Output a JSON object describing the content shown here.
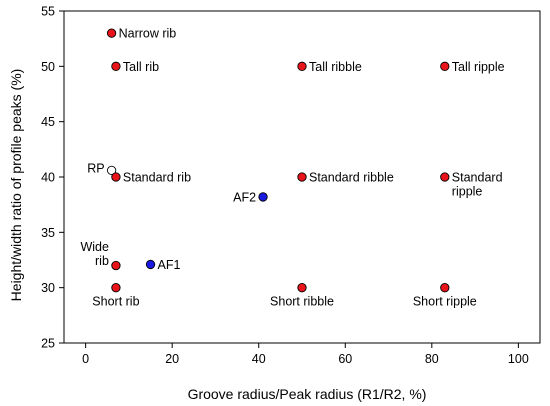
{
  "chart_data": {
    "type": "scatter",
    "title": "",
    "xlabel": "Groove radius/Peak radius (R1/R2, %)",
    "ylabel": "Height/width ratio of profile peaks (%)",
    "xlim": [
      -5,
      105
    ],
    "ylim": [
      25,
      55
    ],
    "xticks": [
      0,
      20,
      40,
      60,
      80,
      100
    ],
    "yticks": [
      25,
      30,
      35,
      40,
      45,
      50,
      55
    ],
    "grid": false,
    "legend": "none",
    "colors": {
      "red": "#e8141a",
      "blue": "#1a1ae0",
      "open": "#ffffff",
      "stroke": "#000000"
    },
    "points": [
      {
        "x": 6,
        "y": 53,
        "label": [
          "Narrow rib"
        ],
        "style": "red",
        "anchor": "right"
      },
      {
        "x": 7,
        "y": 50,
        "label": [
          "Tall rib"
        ],
        "style": "red",
        "anchor": "right"
      },
      {
        "x": 50,
        "y": 50,
        "label": [
          "Tall ribble"
        ],
        "style": "red",
        "anchor": "right"
      },
      {
        "x": 83,
        "y": 50,
        "label": [
          "Tall ripple"
        ],
        "style": "red",
        "anchor": "right"
      },
      {
        "x": 6,
        "y": 40.6,
        "label": [
          "RP"
        ],
        "style": "open",
        "anchor": "left"
      },
      {
        "x": 7,
        "y": 40,
        "label": [
          "Standard rib"
        ],
        "style": "red",
        "anchor": "right"
      },
      {
        "x": 50,
        "y": 40,
        "label": [
          "Standard ribble"
        ],
        "style": "red",
        "anchor": "right"
      },
      {
        "x": 83,
        "y": 40,
        "label": [
          "Standard",
          "ripple"
        ],
        "style": "red",
        "anchor": "right"
      },
      {
        "x": 41,
        "y": 38.2,
        "label": [
          "AF2"
        ],
        "style": "blue",
        "anchor": "left"
      },
      {
        "x": 7,
        "y": 32,
        "label": [
          "Wide",
          "rib"
        ],
        "style": "red",
        "anchor": "left"
      },
      {
        "x": 15,
        "y": 32.1,
        "label": [
          "AF1"
        ],
        "style": "blue",
        "anchor": "right"
      },
      {
        "x": 7,
        "y": 30,
        "label": [
          "Short rib"
        ],
        "style": "red",
        "anchor": "below"
      },
      {
        "x": 50,
        "y": 30,
        "label": [
          "Short ribble"
        ],
        "style": "red",
        "anchor": "below"
      },
      {
        "x": 83,
        "y": 30,
        "label": [
          "Short ripple"
        ],
        "style": "red",
        "anchor": "below"
      }
    ]
  }
}
